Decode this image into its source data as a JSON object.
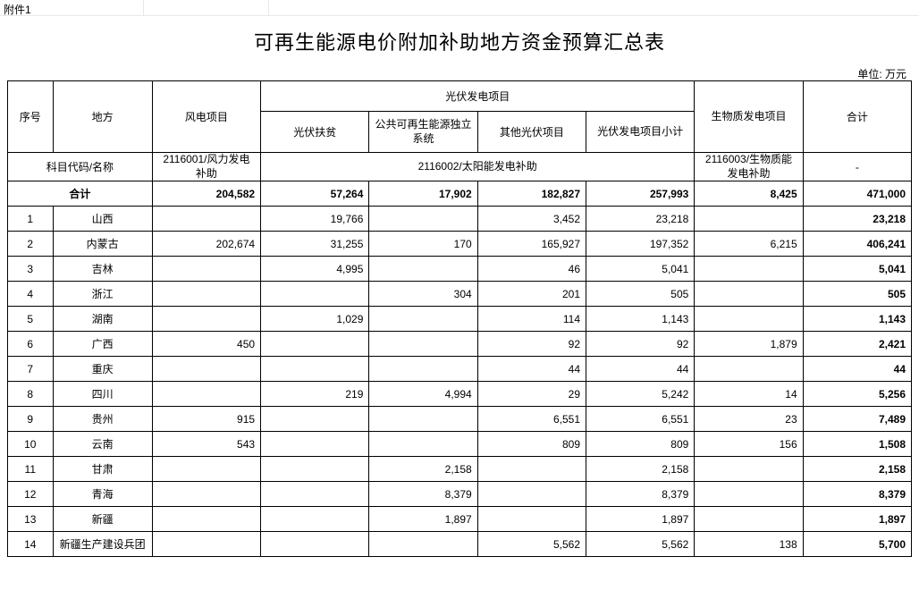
{
  "sheet_tab": "附件1",
  "title": "可再生能源电价附加补助地方资金预算汇总表",
  "unit_label": "单位: 万元",
  "headers": {
    "seq": "序号",
    "region": "地方",
    "wind": "风电项目",
    "pv_group": "光伏发电项目",
    "pv_poverty": "光伏扶贫",
    "pv_public": "公共可再生能源独立系统",
    "pv_other": "其他光伏项目",
    "pv_subtotal": "光伏发电项目小计",
    "biomass": "生物质发电项目",
    "total": "合计"
  },
  "subject": {
    "label": "科目代码/名称",
    "wind": "2116001/风力发电补助",
    "pv": "2116002/太阳能发电补助",
    "biomass": "2116003/生物质能发电补助",
    "total": "-"
  },
  "sum_row": {
    "label": "合计",
    "wind": "204,582",
    "pv_poverty": "57,264",
    "pv_public": "17,902",
    "pv_other": "182,827",
    "pv_subtotal": "257,993",
    "biomass": "8,425",
    "total": "471,000"
  },
  "rows": [
    {
      "seq": "1",
      "region": "山西",
      "wind": "",
      "pv_poverty": "19,766",
      "pv_public": "",
      "pv_other": "3,452",
      "pv_subtotal": "23,218",
      "biomass": "",
      "total": "23,218"
    },
    {
      "seq": "2",
      "region": "内蒙古",
      "wind": "202,674",
      "pv_poverty": "31,255",
      "pv_public": "170",
      "pv_other": "165,927",
      "pv_subtotal": "197,352",
      "biomass": "6,215",
      "total": "406,241"
    },
    {
      "seq": "3",
      "region": "吉林",
      "wind": "",
      "pv_poverty": "4,995",
      "pv_public": "",
      "pv_other": "46",
      "pv_subtotal": "5,041",
      "biomass": "",
      "total": "5,041"
    },
    {
      "seq": "4",
      "region": "浙江",
      "wind": "",
      "pv_poverty": "",
      "pv_public": "304",
      "pv_other": "201",
      "pv_subtotal": "505",
      "biomass": "",
      "total": "505"
    },
    {
      "seq": "5",
      "region": "湖南",
      "wind": "",
      "pv_poverty": "1,029",
      "pv_public": "",
      "pv_other": "114",
      "pv_subtotal": "1,143",
      "biomass": "",
      "total": "1,143"
    },
    {
      "seq": "6",
      "region": "广西",
      "wind": "450",
      "pv_poverty": "",
      "pv_public": "",
      "pv_other": "92",
      "pv_subtotal": "92",
      "biomass": "1,879",
      "total": "2,421"
    },
    {
      "seq": "7",
      "region": "重庆",
      "wind": "",
      "pv_poverty": "",
      "pv_public": "",
      "pv_other": "44",
      "pv_subtotal": "44",
      "biomass": "",
      "total": "44"
    },
    {
      "seq": "8",
      "region": "四川",
      "wind": "",
      "pv_poverty": "219",
      "pv_public": "4,994",
      "pv_other": "29",
      "pv_subtotal": "5,242",
      "biomass": "14",
      "total": "5,256"
    },
    {
      "seq": "9",
      "region": "贵州",
      "wind": "915",
      "pv_poverty": "",
      "pv_public": "",
      "pv_other": "6,551",
      "pv_subtotal": "6,551",
      "biomass": "23",
      "total": "7,489"
    },
    {
      "seq": "10",
      "region": "云南",
      "wind": "543",
      "pv_poverty": "",
      "pv_public": "",
      "pv_other": "809",
      "pv_subtotal": "809",
      "biomass": "156",
      "total": "1,508"
    },
    {
      "seq": "11",
      "region": "甘肃",
      "wind": "",
      "pv_poverty": "",
      "pv_public": "2,158",
      "pv_other": "",
      "pv_subtotal": "2,158",
      "biomass": "",
      "total": "2,158"
    },
    {
      "seq": "12",
      "region": "青海",
      "wind": "",
      "pv_poverty": "",
      "pv_public": "8,379",
      "pv_other": "",
      "pv_subtotal": "8,379",
      "biomass": "",
      "total": "8,379"
    },
    {
      "seq": "13",
      "region": "新疆",
      "wind": "",
      "pv_poverty": "",
      "pv_public": "1,897",
      "pv_other": "",
      "pv_subtotal": "1,897",
      "biomass": "",
      "total": "1,897"
    },
    {
      "seq": "14",
      "region": "新疆生产建设兵团",
      "wind": "",
      "pv_poverty": "",
      "pv_public": "",
      "pv_other": "5,562",
      "pv_subtotal": "5,562",
      "biomass": "138",
      "total": "5,700"
    }
  ],
  "style": {
    "border_color": "#000000",
    "background_color": "#ffffff",
    "font_family": "SimSun",
    "title_fontsize_pt": 16,
    "body_fontsize_pt": 9
  }
}
